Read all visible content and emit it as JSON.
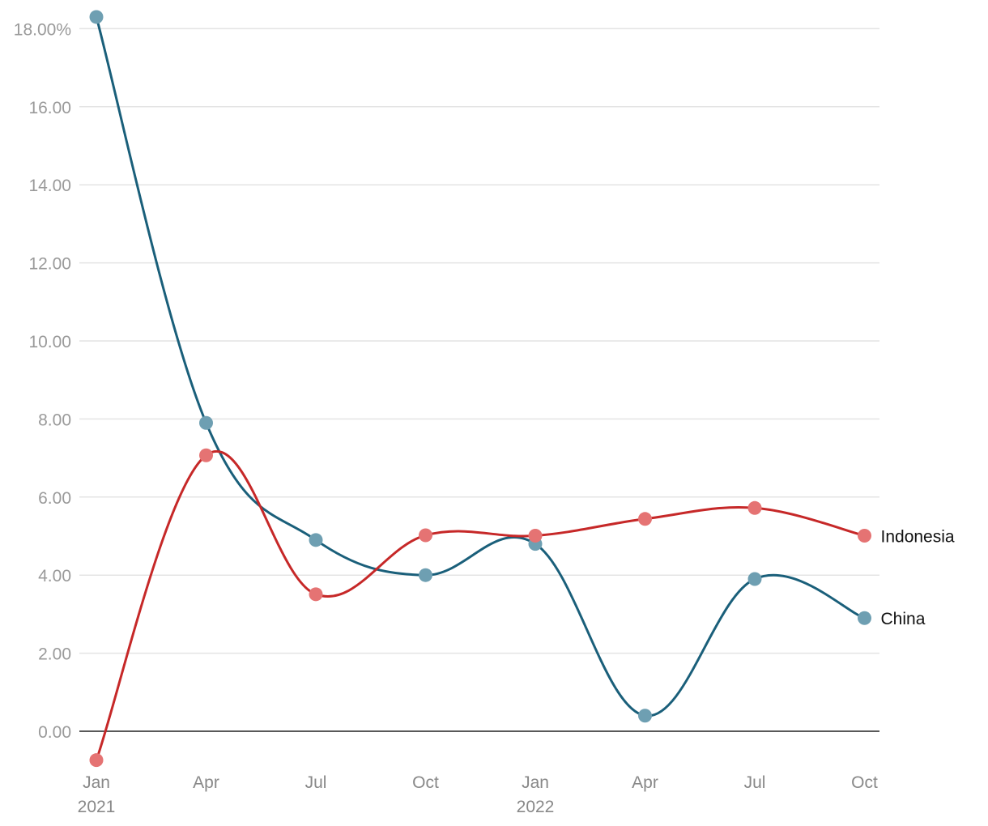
{
  "chart_data": {
    "type": "line",
    "x_ticks": [
      {
        "label": "Jan",
        "sub": "2021"
      },
      {
        "label": "Apr",
        "sub": ""
      },
      {
        "label": "Jul",
        "sub": ""
      },
      {
        "label": "Oct",
        "sub": ""
      },
      {
        "label": "Jan",
        "sub": "2022"
      },
      {
        "label": "Apr",
        "sub": ""
      },
      {
        "label": "Jul",
        "sub": ""
      },
      {
        "label": "Oct",
        "sub": ""
      }
    ],
    "y_ticks": [
      {
        "value": 0,
        "label": "0.00"
      },
      {
        "value": 2,
        "label": "2.00"
      },
      {
        "value": 4,
        "label": "4.00"
      },
      {
        "value": 6,
        "label": "6.00"
      },
      {
        "value": 8,
        "label": "8.00"
      },
      {
        "value": 10,
        "label": "10.00"
      },
      {
        "value": 12,
        "label": "12.00"
      },
      {
        "value": 14,
        "label": "14.00"
      },
      {
        "value": 16,
        "label": "16.00"
      },
      {
        "value": 18,
        "label": "18.00%"
      }
    ],
    "ylim": [
      0,
      18
    ],
    "grid": true,
    "series": [
      {
        "name": "China",
        "color": "#1a5f7a",
        "marker_color": "#6e9fb2",
        "values": [
          18.3,
          7.9,
          4.9,
          4.0,
          4.8,
          0.4,
          3.9,
          2.9
        ]
      },
      {
        "name": "Indonesia",
        "color": "#c62828",
        "marker_color": "#e57373",
        "values": [
          -0.74,
          7.07,
          3.51,
          5.02,
          5.01,
          5.44,
          5.72,
          5.01
        ]
      }
    ]
  }
}
